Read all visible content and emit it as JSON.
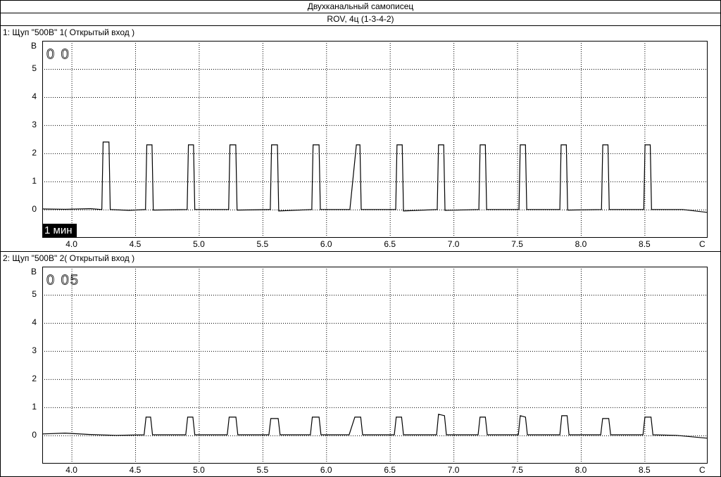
{
  "header": {
    "title": "Двухканальный самописец",
    "subtitle": "ROV, 4ц (1-3-4-2)"
  },
  "chart_data": [
    {
      "type": "line",
      "title": "1: Щуп \"500В\" 1( Открытый вход )",
      "y_label": "В",
      "x_label": "С",
      "counter": "0 0",
      "annotation": "1 мин",
      "xlim": [
        3.77,
        8.99
      ],
      "ylim": [
        -0.98,
        6
      ],
      "xticks": [
        {
          "value": 4,
          "label": "4.0"
        },
        4.5,
        {
          "value": 5,
          "label": "5.0"
        },
        5.5,
        {
          "value": 6,
          "label": "6.0"
        },
        6.5,
        {
          "value": 7,
          "label": "7.0"
        },
        7.5,
        {
          "value": 8,
          "label": "8.0"
        },
        8.5
      ],
      "yticks": [
        0,
        1,
        2,
        3,
        4,
        5
      ],
      "grid": true,
      "series": [
        {
          "color": "#000000",
          "x": [
            3.77,
            3.95,
            4.15,
            4.238,
            4.248,
            4.294,
            4.304,
            4.45,
            4.581,
            4.591,
            4.632,
            4.642,
            4.908,
            4.918,
            4.958,
            4.968,
            5.234,
            5.244,
            5.29,
            5.3,
            5.561,
            5.571,
            5.617,
            5.627,
            5.887,
            5.897,
            5.944,
            5.954,
            6.186,
            6.237,
            6.265,
            6.275,
            6.546,
            6.556,
            6.597,
            6.607,
            6.872,
            6.882,
            6.923,
            6.933,
            7.199,
            7.209,
            7.25,
            7.26,
            7.514,
            7.524,
            7.565,
            7.575,
            7.835,
            7.845,
            7.886,
            7.896,
            8.162,
            8.172,
            8.213,
            8.223,
            8.494,
            8.504,
            8.545,
            8.555,
            8.8,
            8.99
          ],
          "values": [
            0.02,
            0.01,
            0.03,
            0,
            2.4,
            2.4,
            0,
            -0.03,
            0,
            2.3,
            2.3,
            -0.02,
            0,
            2.3,
            2.3,
            0,
            0,
            2.3,
            2.3,
            -0.02,
            0,
            2.3,
            2.3,
            -0.05,
            0,
            2.3,
            2.3,
            0,
            0,
            2.3,
            2.3,
            0,
            0,
            2.3,
            2.3,
            -0.05,
            0,
            2.3,
            2.3,
            -0.03,
            0,
            2.3,
            2.3,
            0,
            0,
            2.3,
            2.3,
            0,
            0,
            2.3,
            2.3,
            -0.02,
            0,
            2.3,
            2.3,
            0,
            0,
            2.3,
            2.3,
            0,
            0,
            -0.1
          ]
        }
      ]
    },
    {
      "type": "line",
      "title": "2: Щуп \"500В\" 2( Открытый вход )",
      "y_label": "В",
      "x_label": "С",
      "counter": "0 05",
      "xlim": [
        3.77,
        8.99
      ],
      "ylim": [
        -0.98,
        6
      ],
      "xticks": [
        {
          "value": 4,
          "label": "4.0"
        },
        4.5,
        {
          "value": 5,
          "label": "5.0"
        },
        5.5,
        {
          "value": 6,
          "label": "6.0"
        },
        6.5,
        {
          "value": 7,
          "label": "7.0"
        },
        7.5,
        {
          "value": 8,
          "label": "8.0"
        },
        8.5
      ],
      "yticks": [
        0,
        1,
        2,
        3,
        4,
        5
      ],
      "grid": true,
      "series": [
        {
          "color": "#000000",
          "x": [
            3.77,
            3.95,
            4.15,
            4.35,
            4.57,
            4.585,
            4.621,
            4.636,
            4.897,
            4.912,
            4.953,
            4.968,
            5.223,
            5.238,
            5.291,
            5.306,
            5.55,
            5.565,
            5.623,
            5.638,
            5.876,
            5.891,
            5.944,
            5.959,
            6.18,
            6.225,
            6.271,
            6.286,
            6.535,
            6.55,
            6.592,
            6.607,
            6.867,
            6.882,
            6.929,
            6.944,
            7.193,
            7.208,
            7.25,
            7.265,
            7.509,
            7.524,
            7.565,
            7.58,
            7.835,
            7.85,
            7.892,
            7.907,
            8.156,
            8.171,
            8.219,
            8.234,
            8.488,
            8.503,
            8.551,
            8.566,
            8.75,
            8.99
          ],
          "values": [
            0.05,
            0.08,
            0.03,
            0.0,
            0.02,
            0.65,
            0.65,
            0.02,
            0.02,
            0.65,
            0.65,
            0.02,
            0.02,
            0.65,
            0.65,
            0.02,
            0.02,
            0.6,
            0.6,
            0.02,
            0.02,
            0.65,
            0.65,
            0.02,
            0.02,
            0.65,
            0.65,
            0.02,
            0.02,
            0.65,
            0.65,
            0.02,
            0.02,
            0.75,
            0.7,
            0.02,
            0.02,
            0.65,
            0.65,
            0.02,
            0.02,
            0.7,
            0.65,
            0.02,
            0.02,
            0.7,
            0.7,
            0.02,
            0.02,
            0.6,
            0.6,
            0.02,
            0.02,
            0.65,
            0.65,
            0.02,
            0.0,
            -0.1
          ]
        }
      ]
    }
  ]
}
